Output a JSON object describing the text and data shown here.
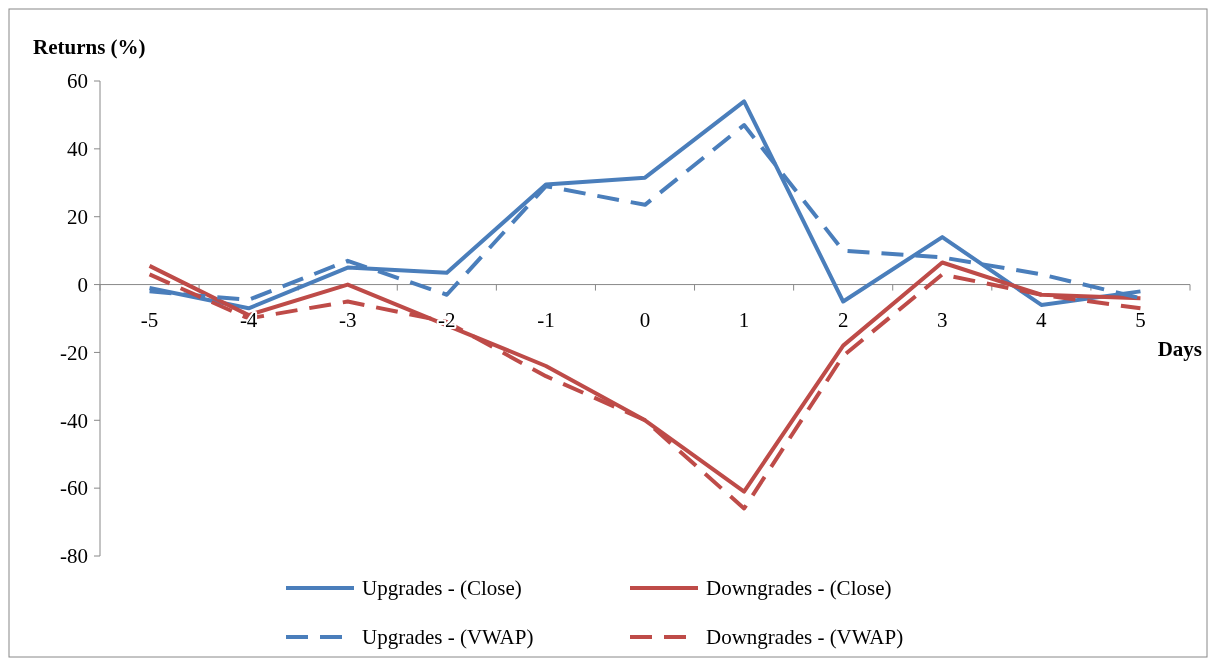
{
  "chart_data": {
    "type": "line",
    "xlabel": "Days",
    "ylabel": "Returns (%)",
    "categories": [
      "-5",
      "-4",
      "-3",
      "-2",
      "-1",
      "0",
      "1",
      "2",
      "3",
      "4",
      "5"
    ],
    "series": [
      {
        "name": "Upgrades - (Close)",
        "color": "#4a7ebb",
        "line_style": "solid",
        "values": [
          -1,
          -7,
          5,
          3.5,
          29.5,
          31.5,
          54,
          -5,
          14,
          -6,
          -2
        ]
      },
      {
        "name": "Downgrades - (Close)",
        "color": "#be4b48",
        "line_style": "solid",
        "values": [
          5.5,
          -9,
          0,
          -12,
          -24,
          -40,
          -61,
          -18,
          6.5,
          -3,
          -4
        ]
      },
      {
        "name": "Upgrades - (VWAP)",
        "color": "#4a7ebb",
        "line_style": "dashed",
        "values": [
          -2,
          -4.5,
          7,
          -3,
          29,
          23.5,
          47,
          10,
          8,
          3,
          -4
        ]
      },
      {
        "name": "Downgrades - (VWAP)",
        "color": "#be4b48",
        "line_style": "dashed",
        "values": [
          3,
          -10,
          -5,
          -11,
          -27,
          -40,
          -66,
          -21,
          3,
          -3,
          -7
        ]
      }
    ],
    "ylim": [
      -80,
      60
    ],
    "yticks": [
      -80,
      -60,
      -40,
      -20,
      0,
      20,
      40,
      60
    ],
    "grid": false,
    "legend": "bottom",
    "marker": "none"
  }
}
